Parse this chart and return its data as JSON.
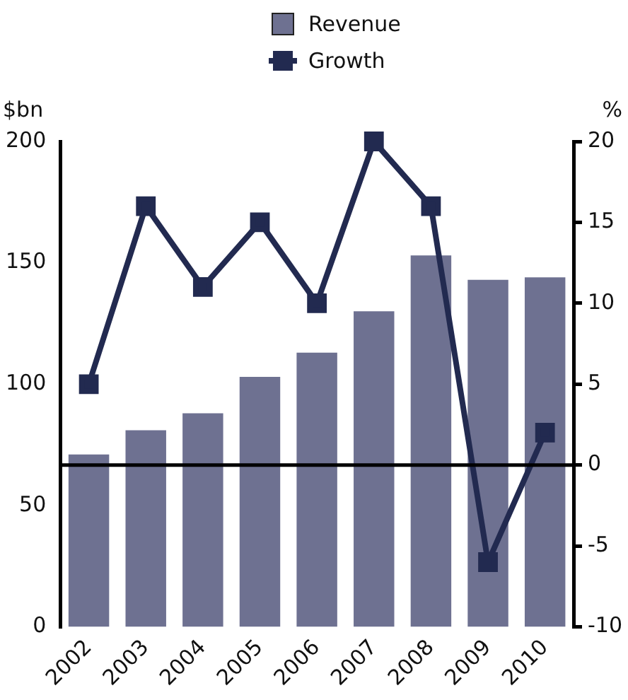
{
  "chart_data": {
    "type": "bar",
    "categories": [
      "2002",
      "2003",
      "2004",
      "2005",
      "2006",
      "2007",
      "2008",
      "2009",
      "2010"
    ],
    "series": [
      {
        "name": "Revenue",
        "color": "#6e7191",
        "values": [
          71,
          81,
          88,
          103,
          113,
          130,
          153,
          143,
          144
        ]
      },
      {
        "name": "Growth",
        "type": "line",
        "axis": "y2",
        "color": "#222a50",
        "marker": "square",
        "values": [
          5,
          16,
          11,
          15,
          10,
          20,
          16,
          -6,
          2
        ]
      }
    ],
    "ylabel": "$bn",
    "y2label": "%",
    "ylim": [
      0,
      200
    ],
    "yticks": [
      0,
      50,
      100,
      150,
      200
    ],
    "y2lim": [
      -10,
      20
    ],
    "y2ticks": [
      -10,
      -5,
      0,
      5,
      10,
      15,
      20
    ],
    "ref_lines": [
      {
        "axis": "y2",
        "value": 0,
        "color": "#000000"
      }
    ],
    "legend": "top",
    "grid": false
  }
}
